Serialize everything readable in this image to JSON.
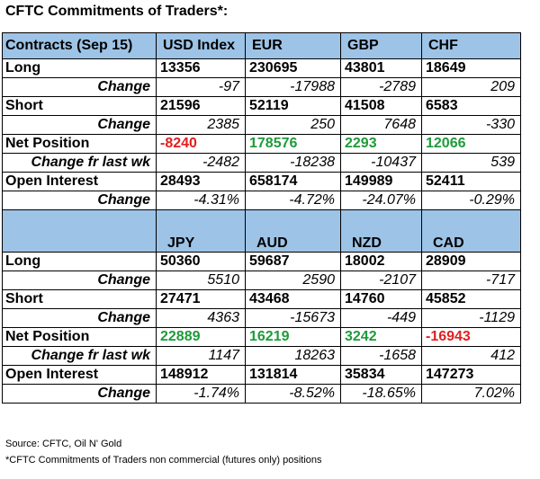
{
  "title": "CFTC Commitments of Traders*:",
  "section1": {
    "header": [
      "Contracts (Sep 15)",
      "USD Index",
      "EUR",
      "GBP",
      "CHF"
    ],
    "long": {
      "label": "Long",
      "values": [
        "13356",
        "230695",
        "43801",
        "18649"
      ]
    },
    "long_change": {
      "label": "Change",
      "values": [
        "-97",
        "-17988",
        "-2789",
        "209"
      ]
    },
    "short": {
      "label": "Short",
      "values": [
        "21596",
        "52119",
        "41508",
        "6583"
      ]
    },
    "short_change": {
      "label": "Change",
      "values": [
        "2385",
        "250",
        "7648",
        "-330"
      ]
    },
    "net": {
      "label": "Net Position",
      "values": [
        "-8240",
        "178576",
        "2293",
        "12066"
      ]
    },
    "net_change": {
      "label": "Change fr last wk",
      "values": [
        "-2482",
        "-18238",
        "-10437",
        "539"
      ]
    },
    "oi": {
      "label": "Open Interest",
      "values": [
        "28493",
        "658174",
        "149989",
        "52411"
      ]
    },
    "oi_change": {
      "label": "Change",
      "values": [
        "-4.31%",
        "-4.72%",
        "-24.07%",
        "-0.29%"
      ]
    }
  },
  "section2": {
    "header": [
      "",
      "JPY",
      "AUD",
      "NZD",
      "CAD"
    ],
    "long": {
      "label": "Long",
      "values": [
        "50360",
        "59687",
        "18002",
        "28909"
      ]
    },
    "long_change": {
      "label": "Change",
      "values": [
        "5510",
        "2590",
        "-2107",
        "-717"
      ]
    },
    "short": {
      "label": "Short",
      "values": [
        "27471",
        "43468",
        "14760",
        "45852"
      ]
    },
    "short_change": {
      "label": "Change",
      "values": [
        "4363",
        "-15673",
        "-449",
        "-1129"
      ]
    },
    "net": {
      "label": "Net Position",
      "values": [
        "22889",
        "16219",
        "3242",
        "-16943"
      ]
    },
    "net_change": {
      "label": "Change fr last wk",
      "values": [
        "1147",
        "18263",
        "-1658",
        "412"
      ]
    },
    "oi": {
      "label": "Open Interest",
      "values": [
        "148912",
        "131814",
        "35834",
        "147273"
      ]
    },
    "oi_change": {
      "label": "Change",
      "values": [
        "-1.74%",
        "-8.52%",
        "-18.65%",
        "7.02%"
      ]
    }
  },
  "source": "Source: CFTC, Oil N' Gold",
  "footnote": "*CFTC Commitments of Traders non commercial (futures only) positions",
  "colors": {
    "header_bg": "#9dc3e6",
    "negative": "#e02020",
    "positive": "#1e9b3a"
  }
}
